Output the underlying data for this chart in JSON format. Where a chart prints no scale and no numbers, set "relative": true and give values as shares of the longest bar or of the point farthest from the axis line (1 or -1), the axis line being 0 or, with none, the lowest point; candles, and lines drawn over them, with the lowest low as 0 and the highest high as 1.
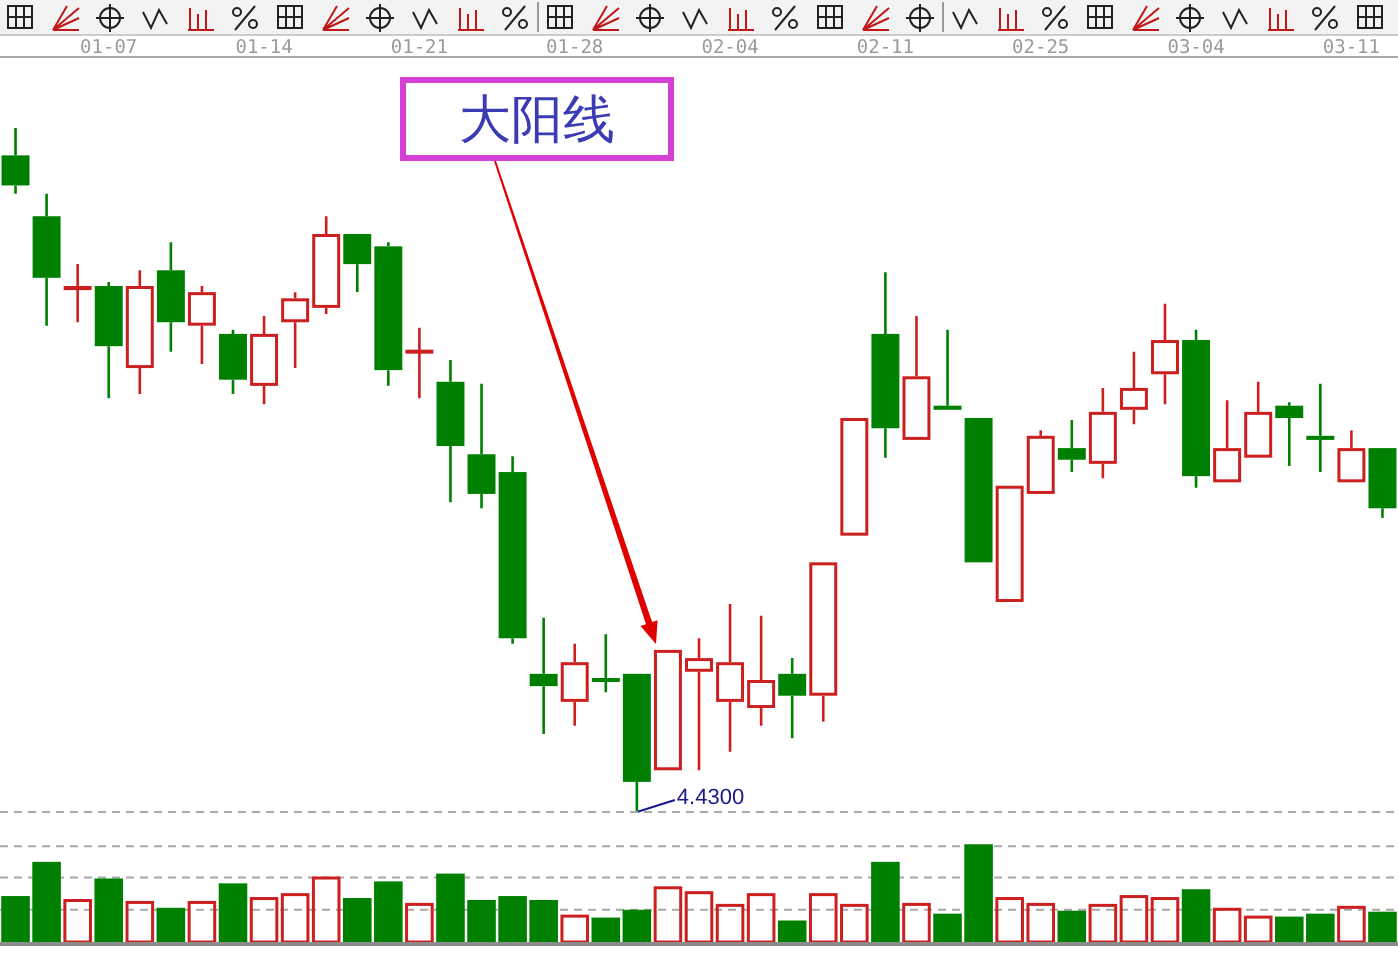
{
  "chart_data": [
    {
      "type": "candlestick",
      "relative": true,
      "categories": [
        null,
        null,
        null,
        "01-07",
        null,
        null,
        null,
        null,
        "01-14",
        null,
        null,
        null,
        null,
        "01-21",
        null,
        null,
        null,
        null,
        "01-28",
        null,
        null,
        null,
        null,
        "02-04",
        null,
        null,
        null,
        null,
        "02-11",
        null,
        null,
        null,
        null,
        "02-25",
        null,
        null,
        null,
        null,
        "03-04",
        null,
        null,
        null,
        null,
        "03-11",
        null
      ],
      "ohlc": [
        [
          0.96,
          1.0,
          0.904,
          0.916
        ],
        [
          0.871,
          0.904,
          0.711,
          0.781
        ],
        [
          0.763,
          0.801,
          0.716,
          0.769
        ],
        [
          0.769,
          0.775,
          0.605,
          0.681
        ],
        [
          0.649,
          0.792,
          0.611,
          0.769
        ],
        [
          0.792,
          0.833,
          0.673,
          0.716
        ],
        [
          0.711,
          0.769,
          0.655,
          0.76
        ],
        [
          0.699,
          0.705,
          0.611,
          0.632
        ],
        [
          0.623,
          0.725,
          0.596,
          0.699
        ],
        [
          0.716,
          0.76,
          0.649,
          0.751
        ],
        [
          0.737,
          0.871,
          0.728,
          0.845
        ],
        [
          0.845,
          0.845,
          0.76,
          0.801
        ],
        [
          0.827,
          0.833,
          0.623,
          0.646
        ],
        [
          0.673,
          0.708,
          0.605,
          0.673
        ],
        [
          0.629,
          0.661,
          0.453,
          0.535
        ],
        [
          0.523,
          0.626,
          0.444,
          0.465
        ],
        [
          0.497,
          0.52,
          0.246,
          0.254
        ],
        [
          0.202,
          0.284,
          0.114,
          0.184
        ],
        [
          0.161,
          0.246,
          0.126,
          0.219
        ],
        [
          0.193,
          0.26,
          0.175,
          0.193
        ],
        [
          0.202,
          0.202,
          0.0,
          0.044
        ],
        [
          0.061,
          0.237,
          0.061,
          0.237
        ],
        [
          0.205,
          0.254,
          0.061,
          0.225
        ],
        [
          0.161,
          0.304,
          0.088,
          0.219
        ],
        [
          0.152,
          0.287,
          0.126,
          0.193
        ],
        [
          0.202,
          0.225,
          0.108,
          0.17
        ],
        [
          0.17,
          0.365,
          0.132,
          0.365
        ],
        [
          0.404,
          0.576,
          0.404,
          0.576
        ],
        [
          0.699,
          0.789,
          0.518,
          0.561
        ],
        [
          0.544,
          0.725,
          0.544,
          0.637
        ],
        [
          0.594,
          0.705,
          0.588,
          0.588
        ],
        [
          0.576,
          0.576,
          0.365,
          0.365
        ],
        [
          0.307,
          0.477,
          0.307,
          0.477
        ],
        [
          0.465,
          0.558,
          0.465,
          0.55
        ],
        [
          0.532,
          0.573,
          0.497,
          0.515
        ],
        [
          0.509,
          0.62,
          0.488,
          0.585
        ],
        [
          0.588,
          0.673,
          0.567,
          0.62
        ],
        [
          0.64,
          0.743,
          0.596,
          0.69
        ],
        [
          0.69,
          0.705,
          0.474,
          0.491
        ],
        [
          0.482,
          0.602,
          0.482,
          0.532
        ],
        [
          0.518,
          0.629,
          0.518,
          0.585
        ],
        [
          0.594,
          0.599,
          0.506,
          0.576
        ],
        [
          0.55,
          0.626,
          0.497,
          0.544
        ],
        [
          0.482,
          0.558,
          0.482,
          0.532
        ],
        [
          0.532,
          0.532,
          0.43,
          0.444
        ]
      ],
      "colors": [
        "#008000",
        "#008000",
        "#cc2020",
        "#008000",
        "#cc2020",
        "#008000",
        "#cc2020",
        "#008000",
        "#cc2020",
        "#cc2020",
        "#cc2020",
        "#008000",
        "#008000",
        "#cc2020",
        "#008000",
        "#008000",
        "#008000",
        "#008000",
        "#cc2020",
        "#008000",
        "#008000",
        "#cc2020",
        "#cc2020",
        "#cc2020",
        "#cc2020",
        "#008000",
        "#cc2020",
        "#cc2020",
        "#008000",
        "#cc2020",
        "#008000",
        "#008000",
        "#cc2020",
        "#cc2020",
        "#008000",
        "#cc2020",
        "#cc2020",
        "#cc2020",
        "#008000",
        "#cc2020",
        "#cc2020",
        "#008000",
        "#008000",
        "#cc2020",
        "#008000"
      ],
      "annotations": [
        "大阳线",
        "4.4300"
      ]
    },
    {
      "type": "bar",
      "relative": true,
      "categories": [
        null,
        null,
        null,
        null,
        null,
        null,
        null,
        null,
        null,
        null,
        null,
        null,
        null,
        null,
        null,
        null,
        null,
        null,
        null,
        null,
        null,
        null,
        null,
        null,
        null,
        null,
        null,
        null,
        null,
        null,
        null,
        null,
        null,
        null,
        null,
        null,
        null,
        null,
        null,
        null,
        null,
        null,
        null,
        null,
        null
      ],
      "values": [
        0.47,
        0.82,
        0.44,
        0.65,
        0.42,
        0.35,
        0.42,
        0.6,
        0.46,
        0.5,
        0.67,
        0.45,
        0.62,
        0.4,
        0.7,
        0.43,
        0.47,
        0.43,
        0.28,
        0.25,
        0.33,
        0.57,
        0.52,
        0.39,
        0.5,
        0.22,
        0.5,
        0.39,
        0.82,
        0.4,
        0.29,
        1.0,
        0.46,
        0.4,
        0.32,
        0.39,
        0.48,
        0.46,
        0.54,
        0.35,
        0.27,
        0.26,
        0.29,
        0.37,
        0.31
      ],
      "colors": [
        "#008000",
        "#008000",
        "#cc2020",
        "#008000",
        "#cc2020",
        "#008000",
        "#cc2020",
        "#008000",
        "#cc2020",
        "#cc2020",
        "#cc2020",
        "#008000",
        "#008000",
        "#cc2020",
        "#008000",
        "#008000",
        "#008000",
        "#008000",
        "#cc2020",
        "#008000",
        "#008000",
        "#cc2020",
        "#cc2020",
        "#cc2020",
        "#cc2020",
        "#008000",
        "#cc2020",
        "#cc2020",
        "#008000",
        "#cc2020",
        "#008000",
        "#008000",
        "#cc2020",
        "#cc2020",
        "#008000",
        "#cc2020",
        "#cc2020",
        "#cc2020",
        "#008000",
        "#cc2020",
        "#cc2020",
        "#008000",
        "#008000",
        "#cc2020",
        "#008000"
      ],
      "ref_lines": [
        {
          "axis": "y",
          "value": 0.33,
          "color": "#a8a8a8",
          "line_style": "dashed"
        },
        {
          "axis": "y",
          "value": 0.66,
          "color": "#a8a8a8",
          "line_style": "dashed"
        },
        {
          "axis": "y",
          "value": 0.98,
          "color": "#a8a8a8",
          "line_style": "dashed"
        },
        {
          "axis": "y",
          "value": 1.33,
          "color": "#a8a8a8",
          "line_style": "dashed"
        }
      ]
    }
  ]
}
